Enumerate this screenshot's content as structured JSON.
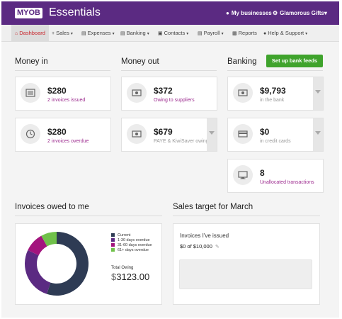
{
  "header": {
    "logo": "MYOB",
    "product": "Essentials",
    "my_businesses": "My businesses",
    "business_name": "Glamorous Gifts",
    "business_caret": "▾"
  },
  "nav": [
    {
      "label": "Dashboard",
      "icon": "home-icon"
    },
    {
      "label": "Sales",
      "icon": "plus-icon"
    },
    {
      "label": "Expenses",
      "icon": "money-icon"
    },
    {
      "label": "Banking",
      "icon": "bank-icon"
    },
    {
      "label": "Contacts",
      "icon": "book-icon"
    },
    {
      "label": "Payroll",
      "icon": "doc-icon"
    },
    {
      "label": "Reports",
      "icon": "chart-icon"
    },
    {
      "label": "Help & Support",
      "icon": "chat-icon"
    }
  ],
  "money_in": {
    "title": "Money in",
    "issued": {
      "amount": "$280",
      "label": "2 invoices issued"
    },
    "overdue": {
      "amount": "$280",
      "label": "2 invoices overdue"
    }
  },
  "money_out": {
    "title": "Money out",
    "suppliers": {
      "amount": "$372",
      "label": "Owing to suppliers"
    },
    "paye": {
      "amount": "$679",
      "label": "PAYE & KiwiSaver owing"
    }
  },
  "banking": {
    "title": "Banking",
    "setup_button": "Set up bank feeds",
    "in_bank": {
      "amount": "$9,793",
      "label": "in the bank"
    },
    "credit": {
      "amount": "$0",
      "label": "in credit cards"
    },
    "unallocated": {
      "amount": "8",
      "label": "Unallocated transactions"
    }
  },
  "invoices": {
    "title": "Invoices owed to me",
    "legend": [
      "Current",
      "1-30 days overdue",
      "31-60 days overdue",
      "61+ days overdue"
    ],
    "total_label": "Total Owing",
    "currency": "$",
    "total_value": "3123.00"
  },
  "sales_target": {
    "title": "Sales target for March",
    "issued_label": "Invoices I've issued",
    "progress_text": "$0 of $10,000",
    "progress_fraction": 0
  },
  "chart_data": {
    "type": "pie",
    "categories": [
      "Current",
      "1-30 days overdue",
      "31-60 days overdue",
      "61+ days overdue"
    ],
    "values": [
      55,
      27,
      10,
      8
    ],
    "colors": [
      "#2e3b54",
      "#5b2a82",
      "#a3157e",
      "#70c14a"
    ]
  }
}
